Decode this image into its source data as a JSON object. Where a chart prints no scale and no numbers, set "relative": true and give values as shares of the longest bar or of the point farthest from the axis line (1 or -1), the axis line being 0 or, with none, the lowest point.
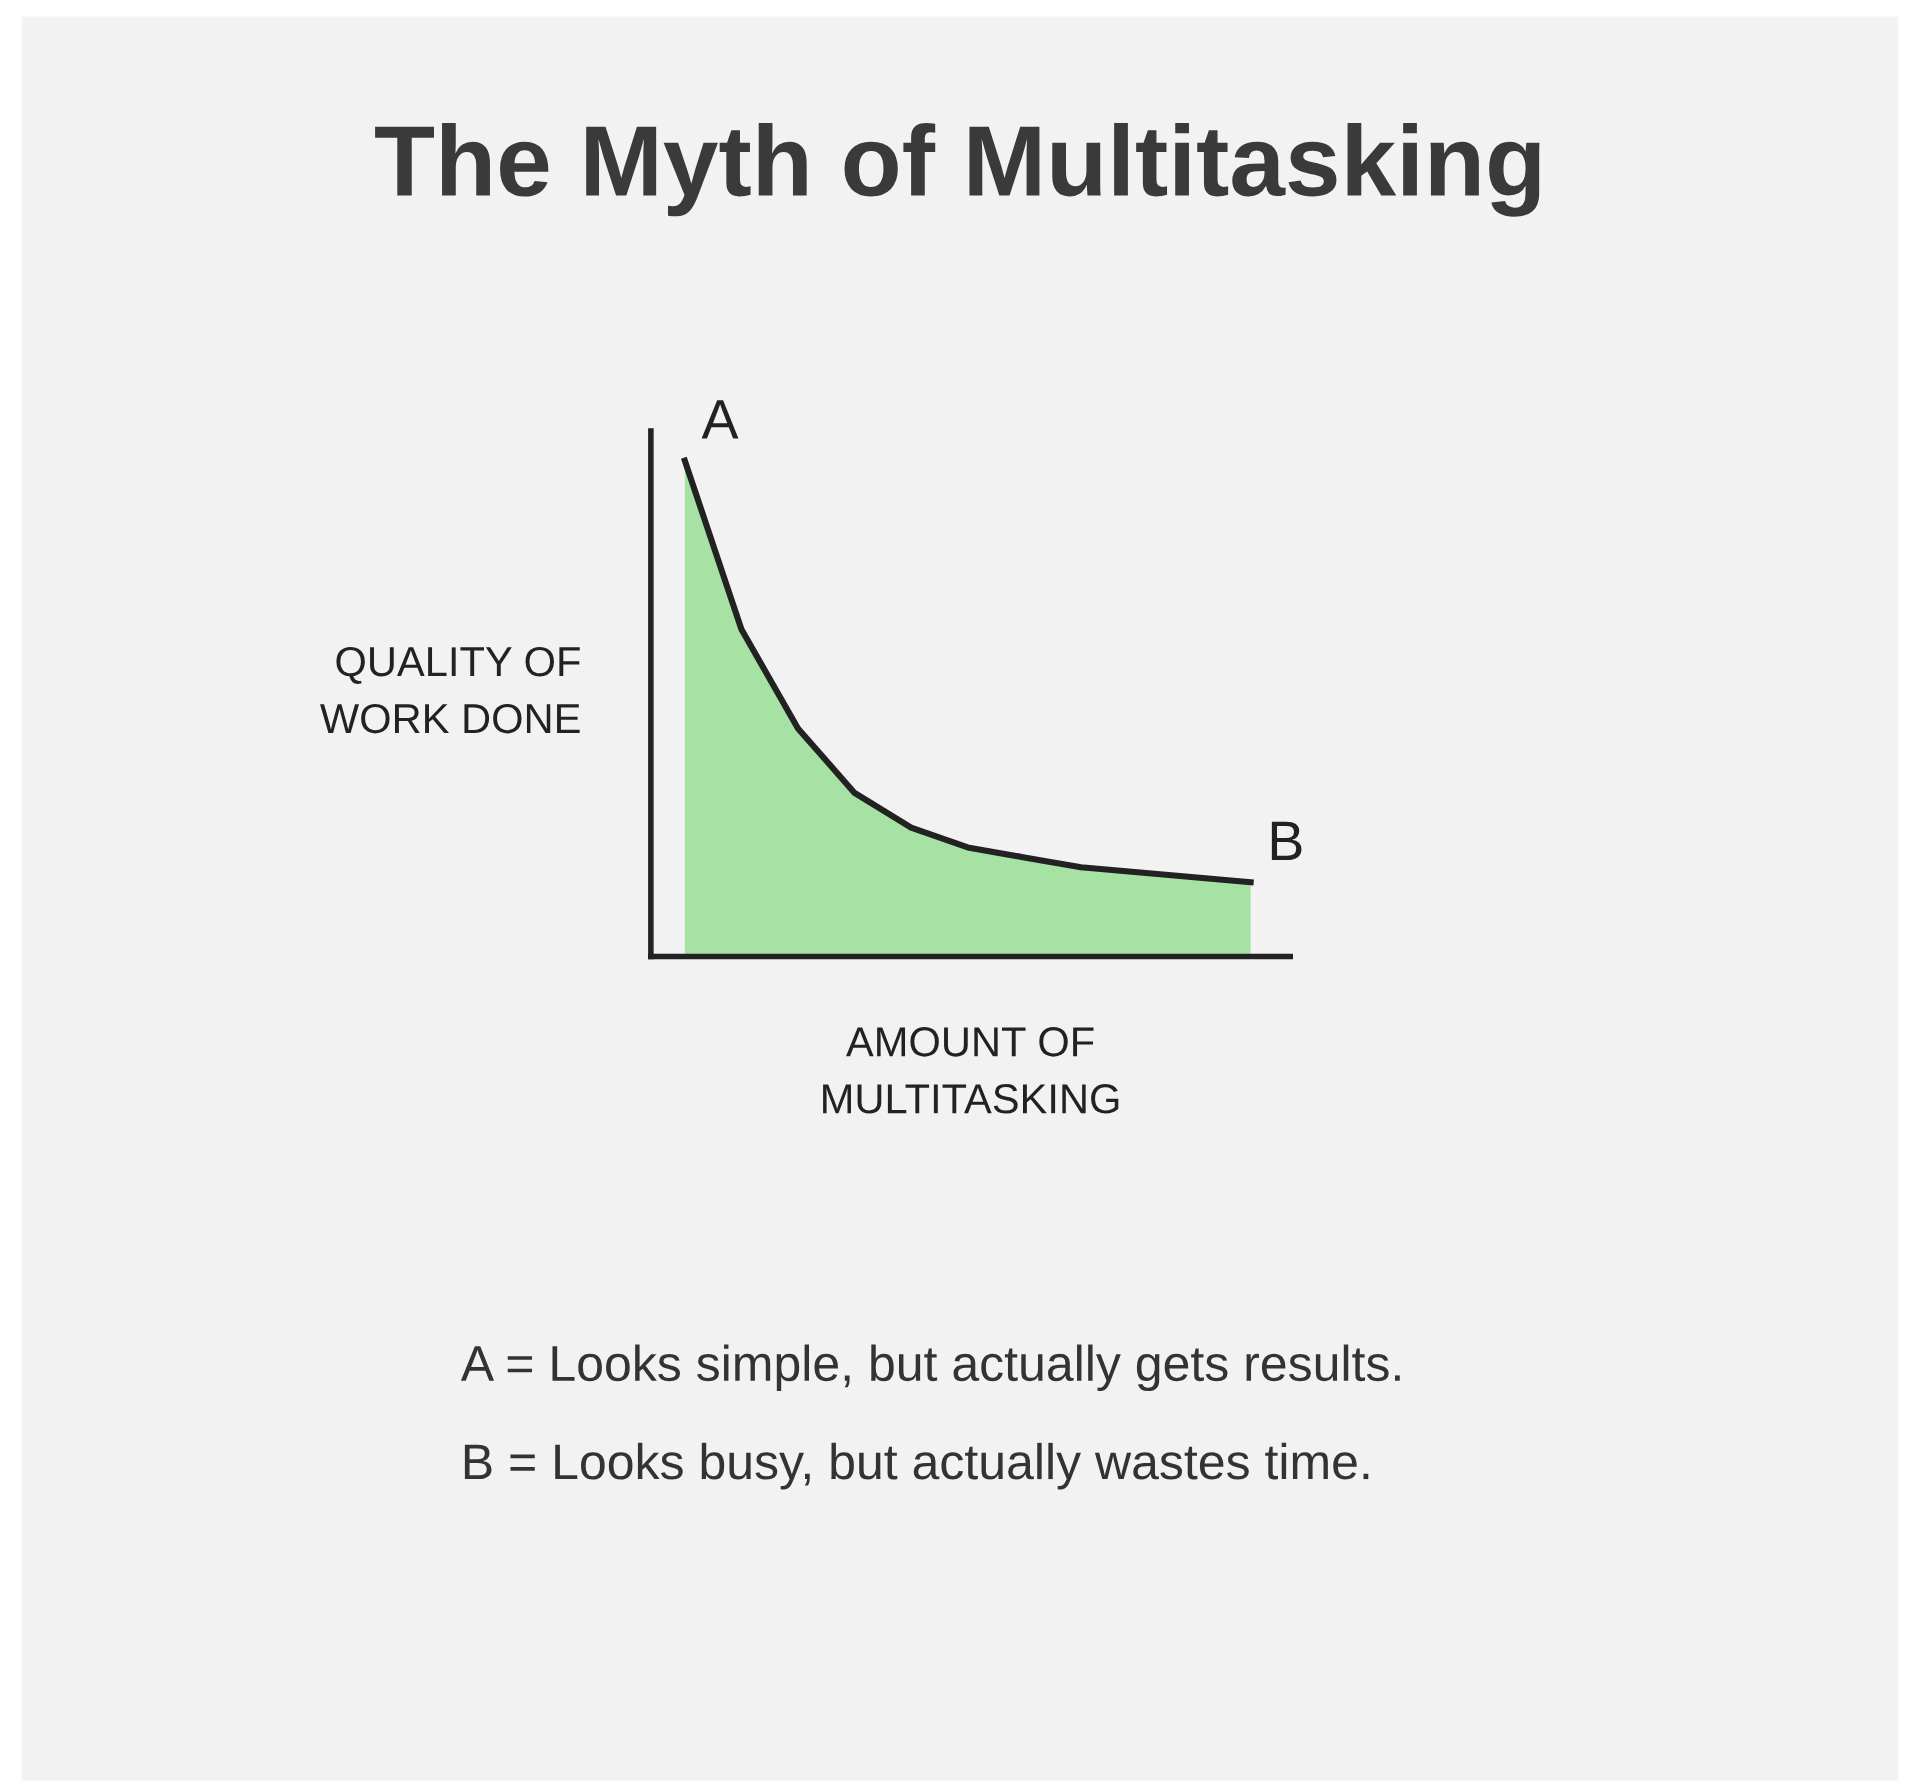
{
  "chart_data": {
    "type": "area",
    "title": "The Myth of Multitasking",
    "xlabel": "AMOUNT OF\nMULTITASKING",
    "ylabel": "QUALITY OF\nWORK DONE",
    "relative": true,
    "categories": [
      null,
      null,
      null,
      null,
      null,
      null,
      null,
      null,
      null,
      null,
      null
    ],
    "series": [
      {
        "color": "#a6e2a4",
        "values": [
          1,
          0.66,
          0.46,
          0.33,
          0.26,
          0.22,
          0.2,
          0.18,
          0.17,
          0.16,
          0.15
        ]
      }
    ],
    "annotations": [
      "A",
      "B",
      "A = Looks simple, but actually gets results.",
      "B = Looks busy, but actually wastes time."
    ],
    "legend": false,
    "marker": "none",
    "line_style": "solid"
  }
}
